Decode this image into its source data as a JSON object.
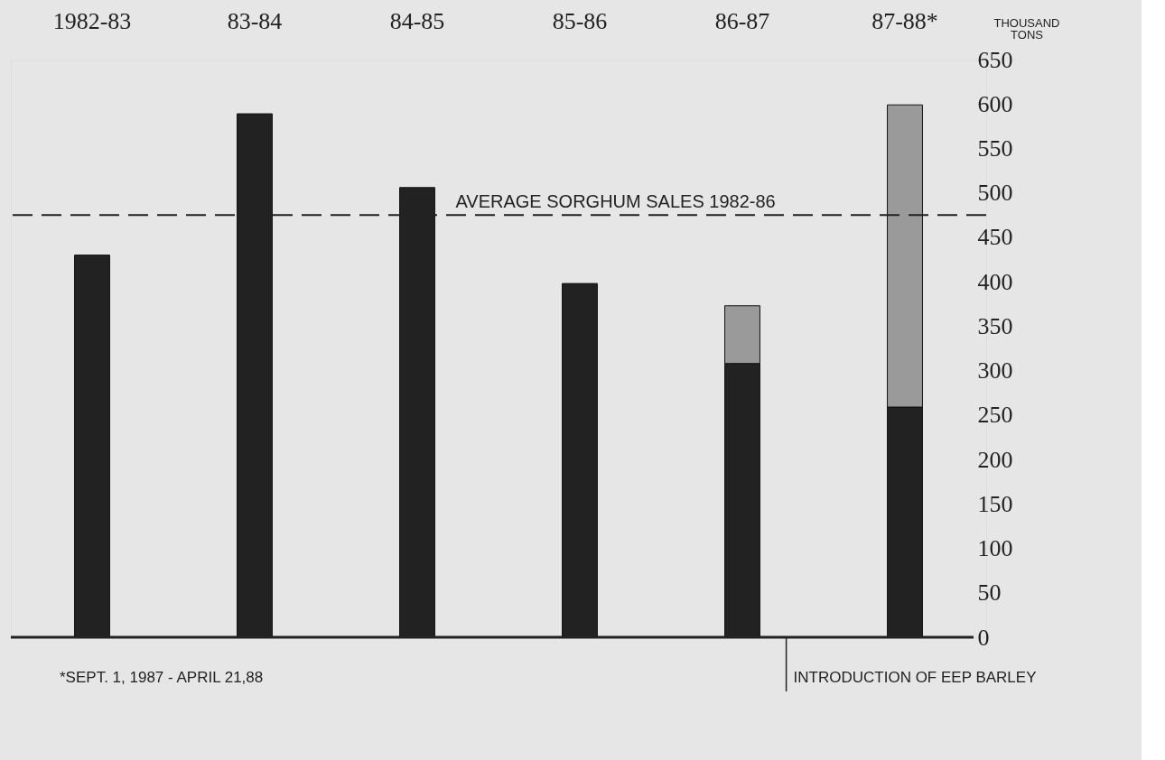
{
  "chart_data": {
    "type": "bar",
    "stacked": true,
    "categories": [
      "1982-83",
      "83-84",
      "84-85",
      "85-86",
      "86-87",
      "87-88*"
    ],
    "series": [
      {
        "color": "#222222",
        "values": [
          430,
          589,
          506,
          398,
          308,
          259
        ]
      },
      {
        "color": "#9a9a9a",
        "values": [
          null,
          null,
          null,
          null,
          65,
          340
        ]
      }
    ],
    "ylabel": "THOUSAND TONS",
    "ylim": [
      0,
      650
    ],
    "yticks": [
      0,
      50,
      100,
      150,
      200,
      250,
      300,
      350,
      400,
      450,
      500,
      550,
      600,
      650
    ],
    "ref_lines": [
      {
        "axis": "y",
        "value": 475,
        "label": "AVERAGE SORGHUM SALES 1982-86",
        "line_style": "dashed",
        "color": "#222222"
      }
    ],
    "annotations": [
      "*SEPT. 1, 1987 - APRIL 21,88",
      "INTRODUCTION OF EEP BARLEY"
    ],
    "grid": false
  }
}
